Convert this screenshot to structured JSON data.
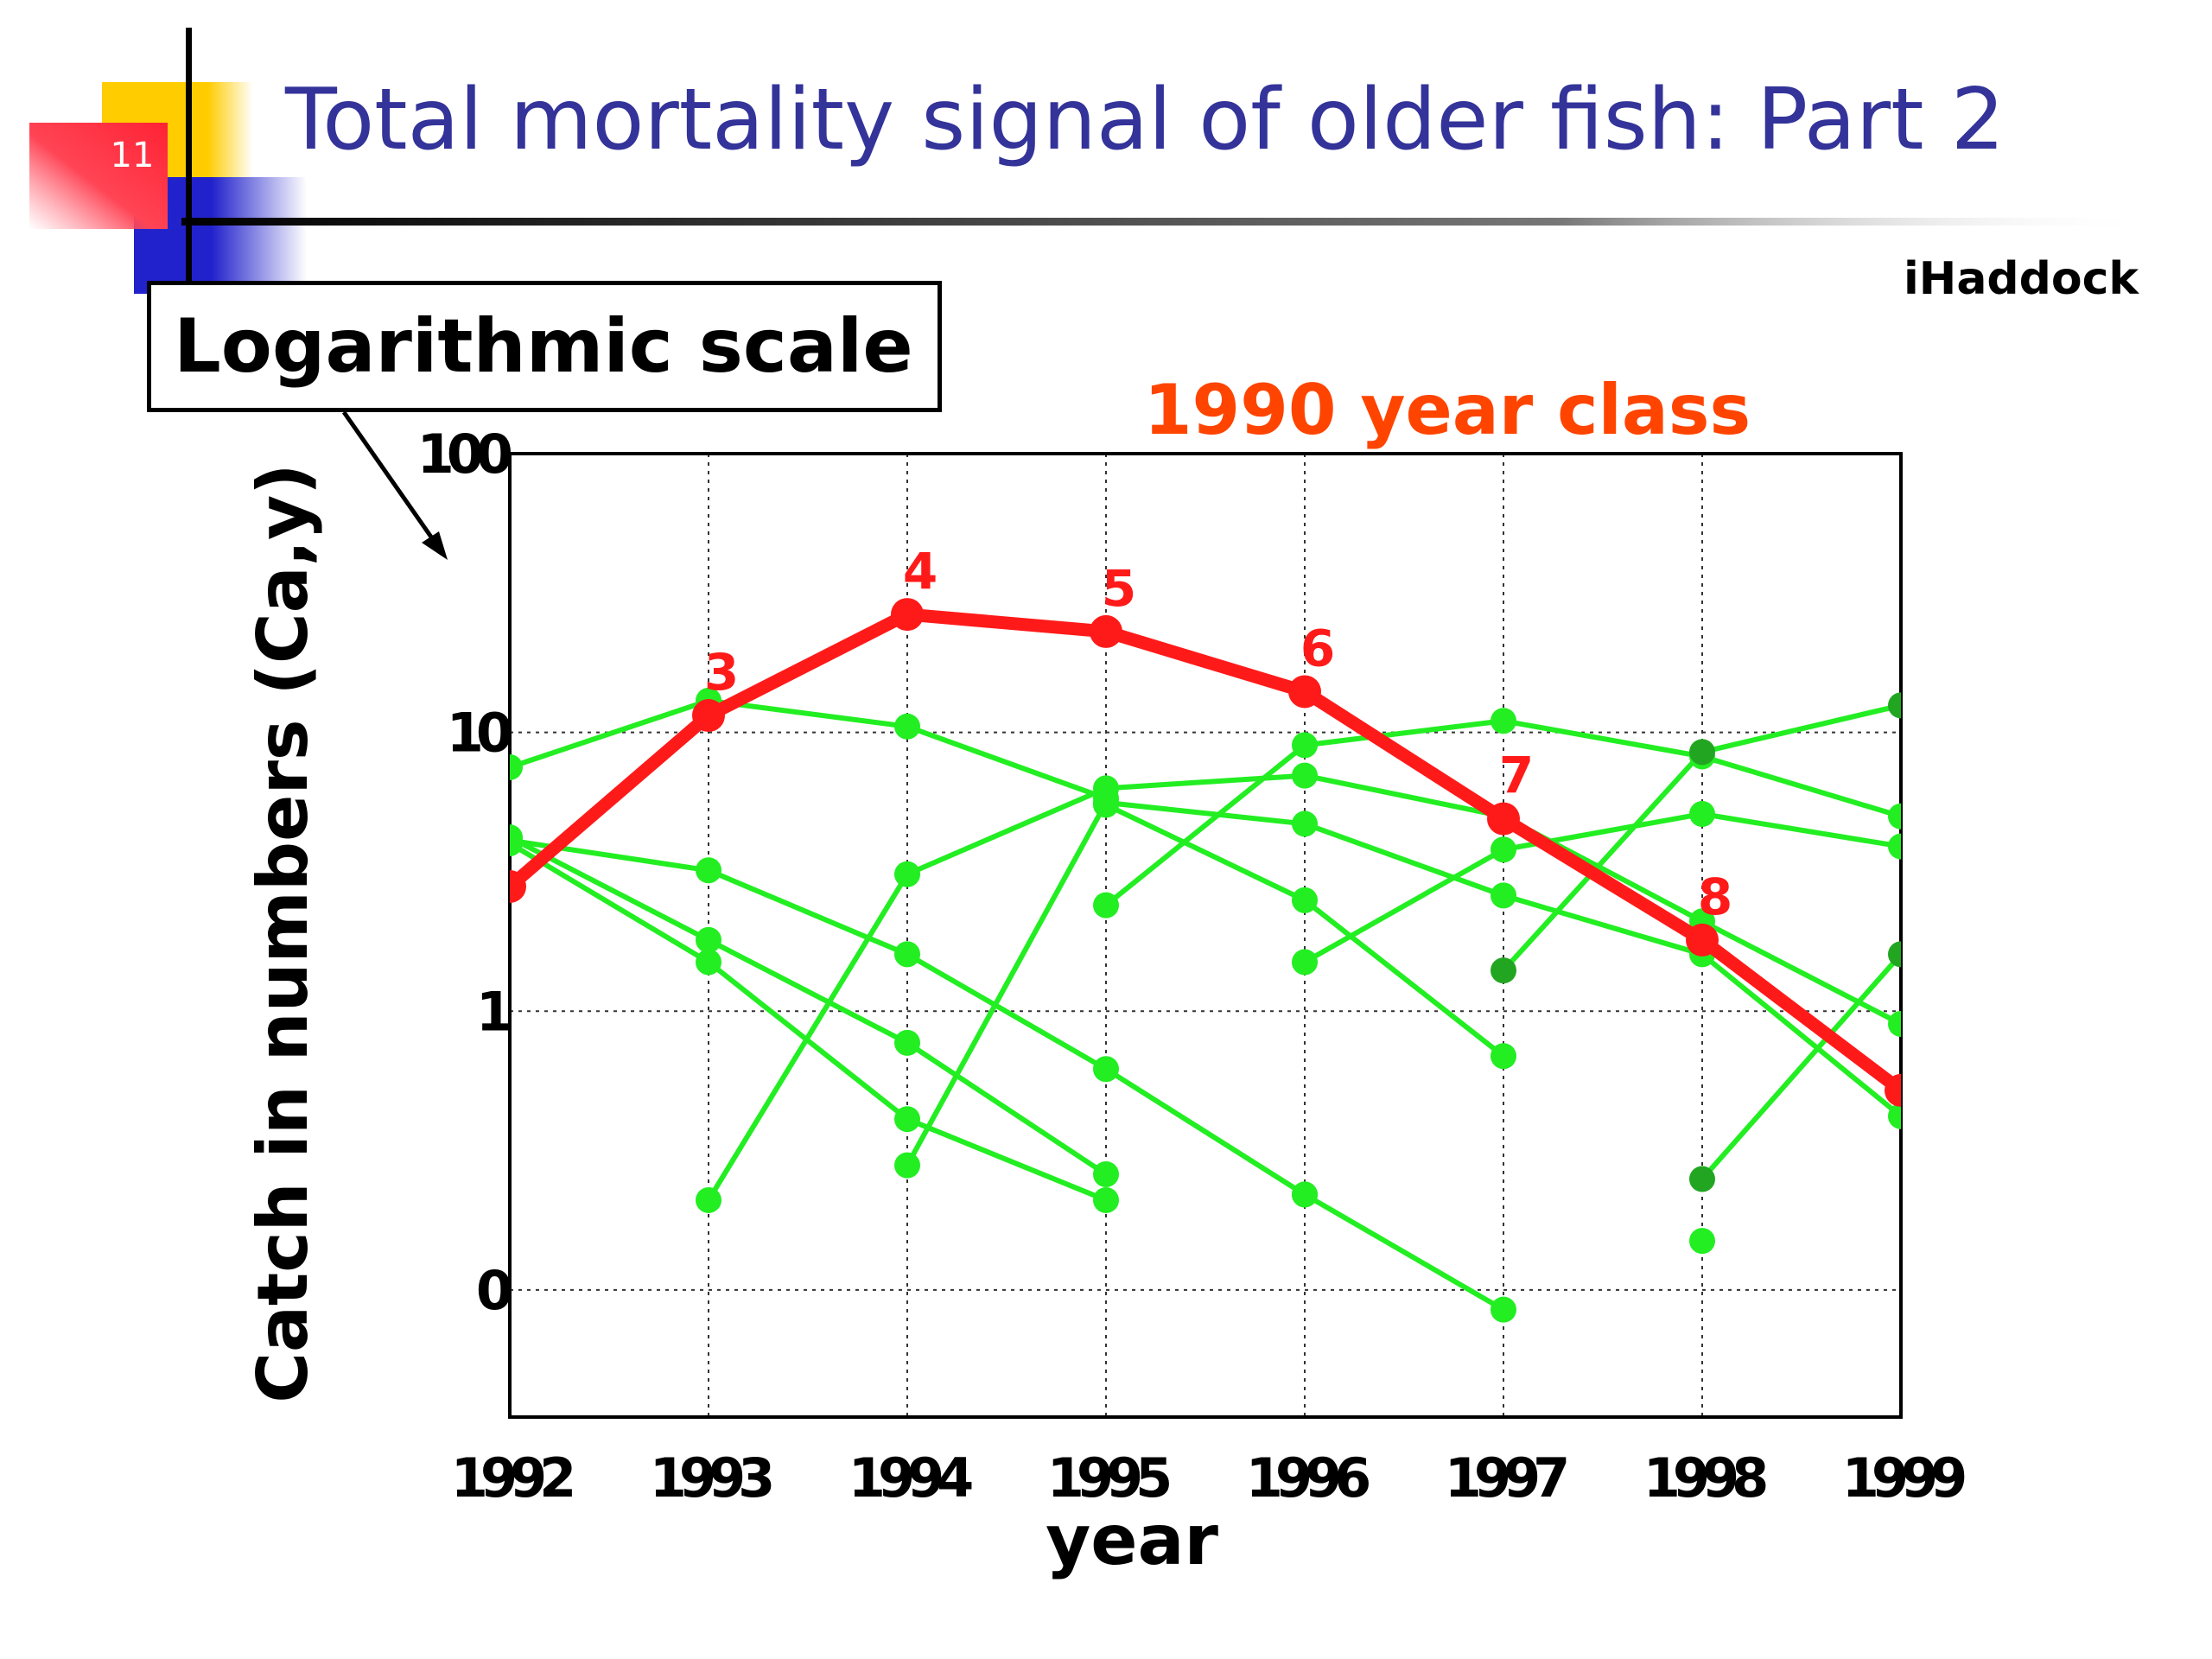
{
  "slide": {
    "number": "11",
    "title": "Total mortality signal of older fish: Part 2",
    "brand": "iHaddock",
    "callout": "Logarithmic scale"
  },
  "colors": {
    "title": "#33339a",
    "highlight": "#ff1a1a",
    "highlight_title": "#ff4400",
    "series": "#22ee22",
    "series_dark": "#22a622",
    "decor_yellow": "#ffcc00",
    "decor_blue": "#2222cc",
    "decor_red": "#ff3344"
  },
  "chart_data": {
    "type": "line",
    "title": "1990 year class",
    "xlabel": "year",
    "ylabel": "Catch in numbers (Ca,y)",
    "x_ticks": [
      "1992",
      "1993",
      "1994",
      "1995",
      "1996",
      "1997",
      "1998",
      "1999"
    ],
    "y_ticks": [
      {
        "value": 0.1,
        "label": "0"
      },
      {
        "value": 1,
        "label": "1"
      },
      {
        "value": 10,
        "label": "10"
      },
      {
        "value": 100,
        "label": "100"
      }
    ],
    "y_scale": "log",
    "xlim": [
      1992,
      1999
    ],
    "ylim": [
      0.035,
      100
    ],
    "grid": true,
    "highlight_series": {
      "x": [
        1992,
        1993,
        1994,
        1995,
        1996,
        1997,
        1998,
        1999
      ],
      "y": [
        2.8,
        11.5,
        26.5,
        23,
        14,
        4.9,
        1.8,
        0.52
      ],
      "point_labels": [
        "",
        "3",
        "4",
        "5",
        "6",
        "7",
        "8",
        ""
      ]
    },
    "background_series": [
      {
        "x": [
          1992,
          1993,
          1994,
          1995
        ],
        "y": [
          7.5,
          13,
          10.5,
          5.8
        ]
      },
      {
        "x": [
          1992,
          1993,
          1994,
          1995,
          1996
        ],
        "y": [
          4.1,
          3.2,
          1.6,
          0.62,
          0.22
        ]
      },
      {
        "x": [
          1992,
          1993,
          1994,
          1995
        ],
        "y": [
          4.2,
          1.8,
          0.77,
          0.26
        ]
      },
      {
        "x": [
          1992,
          1993,
          1994,
          1995
        ],
        "y": [
          4.0,
          1.5,
          0.41,
          0.21
        ]
      },
      {
        "x": [
          1993,
          1994,
          1995,
          1996,
          1997,
          1998,
          1999
        ],
        "y": [
          0.21,
          3.1,
          6.3,
          7,
          5,
          2.1,
          0.9
        ]
      },
      {
        "x": [
          1994,
          1995,
          1996,
          1997,
          1998,
          1999
        ],
        "y": [
          0.28,
          5.6,
          4.7,
          2.6,
          1.6,
          0.42
        ]
      },
      {
        "x": [
          1995,
          1996,
          1997,
          1998,
          1999
        ],
        "y": [
          2.4,
          9,
          11,
          8.2,
          5
        ]
      },
      {
        "x": [
          1995,
          1996,
          1997
        ],
        "y": [
          5.5,
          2.5,
          0.69
        ]
      },
      {
        "x": [
          1996,
          1997
        ],
        "y": [
          0.22,
          0.085
        ]
      },
      {
        "x": [
          1996,
          1997,
          1998,
          1999
        ],
        "y": [
          1.5,
          3.8,
          5.1,
          3.9
        ]
      },
      {
        "x": [
          1997,
          1998,
          1999
        ],
        "y": [
          1.4,
          8.5,
          12.5
        ]
      },
      {
        "x": [
          1998,
          1999
        ],
        "y": [
          0.25,
          1.6
        ]
      },
      {
        "x": [
          1998
        ],
        "y": [
          0.15
        ]
      }
    ]
  }
}
